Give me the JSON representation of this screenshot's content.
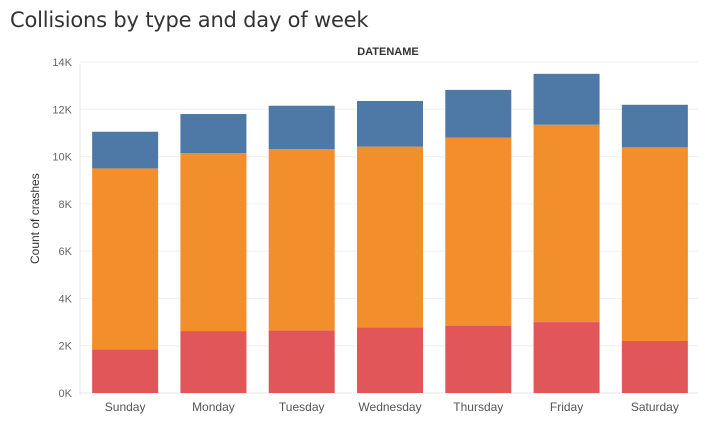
{
  "title": "Collisions by type and day of week",
  "chart_data": {
    "type": "bar",
    "stacked": true,
    "title": "Collisions by type and day of week",
    "column_header": "DATENAME",
    "ylabel": "Count of crashes",
    "xlabel": "",
    "categories": [
      "Sunday",
      "Monday",
      "Tuesday",
      "Wednesday",
      "Thursday",
      "Friday",
      "Saturday"
    ],
    "yticks": [
      0,
      2000,
      4000,
      6000,
      8000,
      10000,
      12000,
      14000
    ],
    "ytick_labels": [
      "0K",
      "2K",
      "4K",
      "6K",
      "8K",
      "10K",
      "12K",
      "14K"
    ],
    "ylim": [
      0,
      14000
    ],
    "grid": true,
    "series": [
      {
        "color": "#e15759",
        "values": [
          1850,
          2620,
          2650,
          2780,
          2850,
          3000,
          2200
        ]
      },
      {
        "color": "#f28e2b",
        "values": [
          7650,
          7530,
          7660,
          7640,
          7950,
          8350,
          8190
        ]
      },
      {
        "color": "#4e79a7",
        "values": [
          1550,
          1650,
          1840,
          1930,
          2020,
          2150,
          1800
        ]
      }
    ]
  }
}
